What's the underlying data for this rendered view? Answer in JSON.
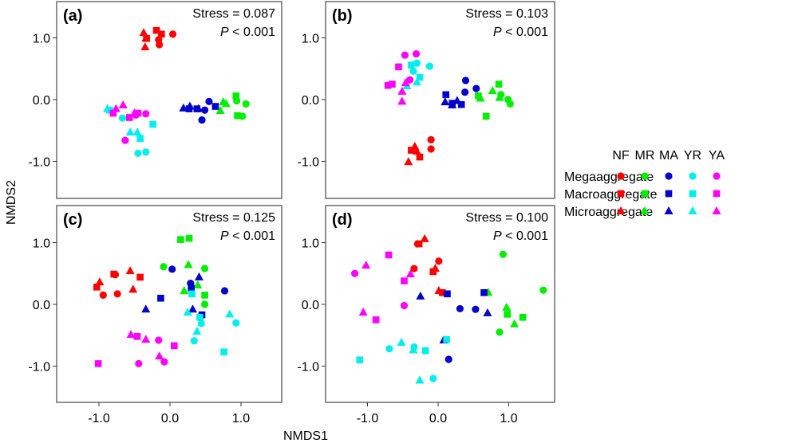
{
  "chart_data": {
    "type": "scatter",
    "xlabel": "NMDS1",
    "ylabel": "NMDS2",
    "xlim": [
      -1.6,
      1.6
    ],
    "ylim": [
      -1.6,
      1.6
    ],
    "xticks": [
      -1.0,
      0.0,
      1.0
    ],
    "yticks": [
      -1.0,
      0.0,
      1.0
    ],
    "xtick_labels": [
      "-1.0",
      "0.0",
      "1.0"
    ],
    "ytick_labels": [
      "-1.0",
      "0.0",
      "1.0"
    ],
    "grid": false,
    "legend": {
      "placement": "right",
      "column_headers": [
        "NF",
        "MR",
        "MA",
        "YR",
        "YA"
      ],
      "row_labels": [
        "Megaaggregate",
        "Macroaggregate",
        "Microaggregate"
      ],
      "row_shapes": [
        "circle",
        "square",
        "triangle"
      ]
    },
    "groups": [
      {
        "name": "NF",
        "color": "#ff0000"
      },
      {
        "name": "MR",
        "color": "#00ee00"
      },
      {
        "name": "MA",
        "color": "#0000cc"
      },
      {
        "name": "YR",
        "color": "#00eeee"
      },
      {
        "name": "YA",
        "color": "#ff00ff"
      }
    ],
    "panels": [
      {
        "label": "(a)",
        "stress_text": "Stress = 0.087",
        "p_italic": "P",
        "p_text": " < 0.001",
        "points": {
          "NF": {
            "circle": [
              [
                0.04,
                1.06
              ],
              [
                -0.16,
                0.97
              ],
              [
                -0.15,
                0.89
              ]
            ],
            "square": [
              [
                -0.19,
                1.12
              ],
              [
                -0.12,
                1.06
              ],
              [
                -0.33,
                0.99
              ]
            ],
            "triangle": [
              [
                -0.37,
                1.08
              ],
              [
                -0.35,
                0.85
              ],
              [
                -0.34,
                0.99
              ]
            ]
          },
          "MR": {
            "circle": [
              [
                1.07,
                -0.07
              ],
              [
                0.94,
                -0.02
              ],
              [
                1.02,
                -0.27
              ]
            ],
            "square": [
              [
                0.93,
                0.06
              ],
              [
                0.95,
                -0.26
              ]
            ],
            "triangle": [
              [
                0.75,
                -0.04
              ],
              [
                0.71,
                -0.18
              ],
              [
                0.79,
                -0.07
              ]
            ]
          },
          "MA": {
            "circle": [
              [
                0.45,
                -0.33
              ],
              [
                0.55,
                -0.03
              ],
              [
                0.49,
                -0.17
              ]
            ],
            "square": [
              [
                0.64,
                -0.11
              ],
              [
                0.38,
                -0.15
              ],
              [
                0.27,
                -0.15
              ]
            ],
            "triangle": [
              [
                0.19,
                -0.14
              ],
              [
                0.28,
                -0.11
              ],
              [
                0.4,
                -0.15
              ]
            ]
          },
          "YR": {
            "circle": [
              [
                -0.67,
                -0.3
              ],
              [
                -0.45,
                -0.87
              ],
              [
                -0.34,
                -0.85
              ]
            ],
            "square": [
              [
                -0.85,
                -0.17
              ],
              [
                -0.24,
                -0.4
              ],
              [
                -0.42,
                -0.63
              ]
            ],
            "triangle": [
              [
                -0.56,
                -0.53
              ],
              [
                -0.46,
                -0.53
              ],
              [
                -0.88,
                -0.15
              ]
            ]
          },
          "YA": {
            "circle": [
              [
                -0.63,
                -0.66
              ],
              [
                -0.34,
                -0.23
              ],
              [
                -0.48,
                -0.25
              ]
            ],
            "square": [
              [
                -0.8,
                -0.22
              ],
              [
                -0.57,
                -0.29
              ],
              [
                -0.45,
                -0.22
              ]
            ],
            "triangle": [
              [
                -0.66,
                -0.09
              ],
              [
                -0.76,
                -0.15
              ],
              [
                -0.5,
                -0.22
              ]
            ]
          }
        }
      },
      {
        "label": "(b)",
        "stress_text": "Stress = 0.103",
        "p_italic": "P",
        "p_text": " < 0.001",
        "points": {
          "NF": {
            "circle": [
              [
                -0.1,
                -0.65
              ],
              [
                -0.1,
                -0.8
              ]
            ],
            "square": [
              [
                -0.38,
                -0.82
              ],
              [
                -0.26,
                -0.93
              ]
            ],
            "triangle": [
              [
                -0.42,
                -1.01
              ],
              [
                -0.33,
                -0.76
              ],
              [
                -0.3,
                -0.84
              ]
            ]
          },
          "MR": {
            "circle": [
              [
                0.89,
                0.08
              ],
              [
                0.99,
                0.0
              ],
              [
                1.02,
                -0.07
              ]
            ],
            "square": [
              [
                0.86,
                0.25
              ],
              [
                0.68,
                -0.27
              ],
              [
                0.57,
                0.06
              ]
            ],
            "triangle": [
              [
                0.77,
                0.14
              ],
              [
                0.6,
                0.02
              ],
              [
                0.87,
                0.03
              ]
            ]
          },
          "MA": {
            "circle": [
              [
                0.39,
                0.31
              ],
              [
                0.38,
                0.12
              ],
              [
                0.54,
                0.18
              ]
            ],
            "square": [
              [
                0.11,
                0.08
              ],
              [
                0.33,
                -0.08
              ],
              [
                0.2,
                -0.06
              ]
            ],
            "triangle": [
              [
                0.1,
                -0.04
              ],
              [
                0.2,
                -0.09
              ],
              [
                0.27,
                -0.02
              ]
            ]
          },
          "YR": {
            "circle": [
              [
                -0.12,
                0.54
              ],
              [
                -0.3,
                0.59
              ],
              [
                -0.35,
                0.46
              ]
            ],
            "square": [
              [
                -0.38,
                0.56
              ],
              [
                -0.26,
                0.36
              ]
            ],
            "triangle": [
              [
                -0.3,
                0.28
              ],
              [
                -0.44,
                0.22
              ]
            ]
          },
          "YA": {
            "circle": [
              [
                -0.47,
                0.72
              ],
              [
                -0.31,
                0.74
              ],
              [
                -0.4,
                0.32
              ]
            ],
            "square": [
              [
                -0.56,
                0.53
              ],
              [
                -0.71,
                0.23
              ],
              [
                -0.65,
                0.25
              ]
            ],
            "triangle": [
              [
                -0.51,
                -0.03
              ],
              [
                -0.51,
                0.13
              ],
              [
                -0.46,
                0.27
              ]
            ]
          }
        }
      },
      {
        "label": "(c)",
        "stress_text": "Stress = 0.125",
        "p_italic": "P",
        "p_text": " < 0.001",
        "points": {
          "NF": {
            "circle": [
              [
                -0.94,
                0.15
              ],
              [
                -0.74,
                0.17
              ],
              [
                -0.77,
                0.48
              ]
            ],
            "square": [
              [
                -1.03,
                0.28
              ],
              [
                -0.42,
                0.44
              ],
              [
                -0.79,
                0.49
              ]
            ],
            "triangle": [
              [
                -0.99,
                0.36
              ],
              [
                -0.56,
                0.54
              ],
              [
                -0.52,
                0.24
              ]
            ]
          },
          "MR": {
            "circle": [
              [
                -0.09,
                0.61
              ],
              [
                0.49,
                0.58
              ],
              [
                0.49,
                0.0
              ]
            ],
            "square": [
              [
                0.15,
                1.05
              ],
              [
                0.27,
                1.07
              ],
              [
                0.49,
                0.15
              ]
            ],
            "triangle": [
              [
                0.26,
                0.64
              ],
              [
                0.2,
                0.22
              ],
              [
                0.39,
                0.31
              ]
            ]
          },
          "MA": {
            "circle": [
              [
                0.03,
                0.57
              ],
              [
                0.29,
                0.34
              ],
              [
                0.77,
                0.22
              ]
            ],
            "square": [
              [
                -0.13,
                0.1
              ],
              [
                0.45,
                -0.17
              ],
              [
                0.3,
                0.26
              ]
            ],
            "triangle": [
              [
                -0.34,
                -0.08
              ],
              [
                0.41,
                0.44
              ],
              [
                0.32,
                -0.08
              ]
            ]
          },
          "YR": {
            "circle": [
              [
                0.44,
                -0.31
              ],
              [
                0.93,
                -0.3
              ],
              [
                0.34,
                -0.59
              ]
            ],
            "square": [
              [
                0.31,
                0.17
              ],
              [
                0.42,
                -0.21
              ],
              [
                0.76,
                -0.77
              ]
            ],
            "triangle": [
              [
                0.25,
                -0.13
              ],
              [
                0.38,
                -0.44
              ],
              [
                0.84,
                -0.16
              ]
            ]
          },
          "YA": {
            "circle": [
              [
                -0.44,
                -0.96
              ],
              [
                -0.08,
                -0.93
              ],
              [
                -0.16,
                -0.58
              ]
            ],
            "square": [
              [
                -1.01,
                -0.96
              ],
              [
                -0.46,
                -0.52
              ],
              [
                0.06,
                -0.67
              ]
            ],
            "triangle": [
              [
                -0.55,
                -0.49
              ],
              [
                -0.34,
                -0.57
              ],
              [
                -0.15,
                -0.84
              ]
            ]
          }
        }
      },
      {
        "label": "(d)",
        "stress_text": "Stress = 0.100",
        "p_italic": "P",
        "p_text": " < 0.001",
        "points": {
          "NF": {
            "circle": [
              [
                -0.29,
                0.98
              ],
              [
                0.01,
                0.7
              ],
              [
                -0.34,
                0.58
              ]
            ],
            "square": [
              [
                -0.07,
                0.53
              ],
              [
                0.06,
                0.19
              ],
              [
                -0.27,
                0.98
              ]
            ],
            "triangle": [
              [
                -0.19,
                1.06
              ],
              [
                -0.04,
                0.58
              ],
              [
                0.01,
                0.22
              ]
            ]
          },
          "MR": {
            "circle": [
              [
                0.92,
                0.81
              ],
              [
                1.49,
                0.23
              ],
              [
                0.87,
                -0.45
              ]
            ],
            "square": [
              [
                0.98,
                -0.16
              ],
              [
                1.2,
                -0.21
              ]
            ],
            "triangle": [
              [
                0.97,
                -0.05
              ],
              [
                1.08,
                -0.32
              ],
              [
                0.71,
                0.19
              ]
            ]
          },
          "MA": {
            "circle": [
              [
                0.31,
                -0.07
              ],
              [
                0.53,
                -0.08
              ],
              [
                0.15,
                -0.89
              ]
            ],
            "square": [
              [
                0.13,
                0.17
              ],
              [
                0.65,
                0.19
              ]
            ],
            "triangle": [
              [
                -0.25,
                0.13
              ],
              [
                0.7,
                -0.14
              ],
              [
                0.08,
                -0.58
              ]
            ]
          },
          "YR": {
            "circle": [
              [
                -0.69,
                -0.72
              ],
              [
                -0.34,
                -0.69
              ],
              [
                -0.07,
                -1.2
              ]
            ],
            "square": [
              [
                -1.11,
                -0.9
              ],
              [
                -0.18,
                -0.75
              ],
              [
                0.12,
                -0.57
              ]
            ],
            "triangle": [
              [
                -0.52,
                -0.62
              ],
              [
                -0.35,
                -0.74
              ],
              [
                -0.26,
                -1.23
              ]
            ]
          },
          "YA": {
            "circle": [
              [
                -1.18,
                0.5
              ],
              [
                -0.48,
                -0.02
              ]
            ],
            "square": [
              [
                -0.7,
                0.8
              ],
              [
                -0.48,
                0.38
              ],
              [
                -0.88,
                -0.25
              ]
            ],
            "triangle": [
              [
                -1.02,
                0.63
              ],
              [
                -0.39,
                0.49
              ],
              [
                -1.06,
                -0.13
              ]
            ]
          }
        }
      }
    ]
  }
}
